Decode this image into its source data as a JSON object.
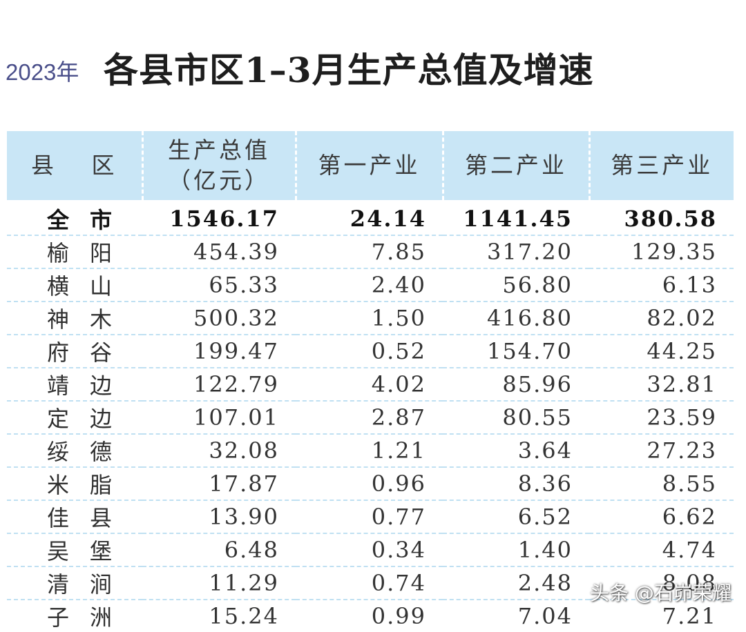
{
  "header": {
    "year": "2023年",
    "title": "各县市区1–3月生产总值及增速"
  },
  "table": {
    "columns": {
      "region": "县 区",
      "gdp_line1": "生产总值",
      "gdp_line2": "（亿元）",
      "primary": "第一产业",
      "secondary": "第二产业",
      "tertiary": "第三产业"
    },
    "rows": [
      {
        "region": "全市",
        "gdp": "1546.17",
        "primary": "24.14",
        "secondary": "1141.45",
        "tertiary": "380.58"
      },
      {
        "region": "榆阳",
        "gdp": "454.39",
        "primary": "7.85",
        "secondary": "317.20",
        "tertiary": "129.35"
      },
      {
        "region": "横山",
        "gdp": "65.33",
        "primary": "2.40",
        "secondary": "56.80",
        "tertiary": "6.13"
      },
      {
        "region": "神木",
        "gdp": "500.32",
        "primary": "1.50",
        "secondary": "416.80",
        "tertiary": "82.02"
      },
      {
        "region": "府谷",
        "gdp": "199.47",
        "primary": "0.52",
        "secondary": "154.70",
        "tertiary": "44.25"
      },
      {
        "region": "靖边",
        "gdp": "122.79",
        "primary": "4.02",
        "secondary": "85.96",
        "tertiary": "32.81"
      },
      {
        "region": "定边",
        "gdp": "107.01",
        "primary": "2.87",
        "secondary": "80.55",
        "tertiary": "23.59"
      },
      {
        "region": "绥德",
        "gdp": "32.08",
        "primary": "1.21",
        "secondary": "3.64",
        "tertiary": "27.23"
      },
      {
        "region": "米脂",
        "gdp": "17.87",
        "primary": "0.96",
        "secondary": "8.36",
        "tertiary": "8.55"
      },
      {
        "region": "佳县",
        "gdp": "13.90",
        "primary": "0.77",
        "secondary": "6.52",
        "tertiary": "6.62"
      },
      {
        "region": "吴堡",
        "gdp": "6.48",
        "primary": "0.34",
        "secondary": "1.40",
        "tertiary": "4.74"
      },
      {
        "region": "清涧",
        "gdp": "11.29",
        "primary": "0.74",
        "secondary": "2.48",
        "tertiary": "8.08"
      },
      {
        "region": "子洲",
        "gdp": "15.24",
        "primary": "0.99",
        "secondary": "7.04",
        "tertiary": "7.21"
      }
    ]
  },
  "watermark": "头条 @石峁荣耀",
  "colors": {
    "header_bg": "#c9e6f6",
    "year_text": "#4a4f8a",
    "row_divider": "#bfe0f2"
  }
}
